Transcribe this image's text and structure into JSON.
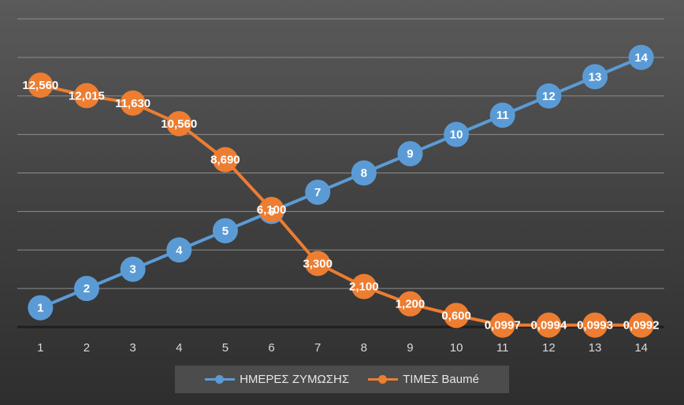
{
  "colors": {
    "series1": "#5b9bd5",
    "series2": "#ed7d31"
  },
  "chart_data": {
    "type": "line",
    "title": "",
    "xlabel": "",
    "ylabel": "",
    "x": [
      "1",
      "2",
      "3",
      "4",
      "5",
      "6",
      "7",
      "8",
      "9",
      "10",
      "11",
      "12",
      "13",
      "14"
    ],
    "ylim": [
      0,
      16
    ],
    "grid": true,
    "legend_position": "bottom",
    "series": [
      {
        "name": "ΗΜΕΡΕΣ ΖΥΜΩΣΗΣ",
        "values": [
          1,
          2,
          3,
          4,
          5,
          6,
          7,
          8,
          9,
          10,
          11,
          12,
          13,
          14
        ],
        "labels": [
          "1",
          "2",
          "3",
          "4",
          "5",
          "6",
          "7",
          "8",
          "9",
          "10",
          "11",
          "12",
          "13",
          "14"
        ]
      },
      {
        "name": "ΤΙΜΕΣ Baumé",
        "values": [
          12.56,
          12.015,
          11.63,
          10.56,
          8.69,
          6.1,
          3.3,
          2.1,
          1.2,
          0.6,
          0.0997,
          0.0994,
          0.0993,
          0.0992
        ],
        "labels": [
          "12,560",
          "12,015",
          "11,630",
          "10,560",
          "8,690",
          "6,100",
          "3,300",
          "2,100",
          "1,200",
          "0,600",
          "0,0997",
          "0,0994",
          "0,0993",
          "0,0992"
        ]
      }
    ]
  }
}
